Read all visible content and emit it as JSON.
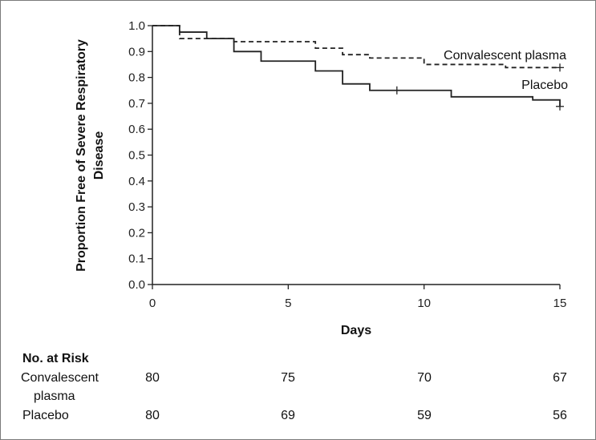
{
  "chart_data": {
    "type": "line",
    "subtype": "kaplan-meier",
    "title": "",
    "xlabel": "Days",
    "ylabel": [
      "Proportion Free of Severe Respiratory",
      "Disease"
    ],
    "xlim": [
      0,
      15
    ],
    "ylim": [
      0,
      1.0
    ],
    "xticks": [
      0,
      5,
      10,
      15
    ],
    "yticks": [
      0.0,
      0.1,
      0.2,
      0.3,
      0.4,
      0.5,
      0.6,
      0.7,
      0.8,
      0.9,
      1.0
    ],
    "ytick_labels": [
      "0.0",
      "0.1",
      "0.2",
      "0.3",
      "0.4",
      "0.5",
      "0.6",
      "0.7",
      "0.8",
      "0.9",
      "1.0"
    ],
    "grid": false,
    "series": [
      {
        "name": "Convalescent plasma",
        "line_style": "dashed",
        "color": "#222222",
        "steps": [
          [
            0,
            1.0
          ],
          [
            1,
            0.95
          ],
          [
            3,
            0.938
          ],
          [
            6,
            0.913
          ],
          [
            7,
            0.888
          ],
          [
            8,
            0.875
          ],
          [
            10,
            0.85
          ],
          [
            13,
            0.838
          ],
          [
            15,
            0.838
          ]
        ],
        "censored": [
          [
            15,
            0.838
          ]
        ]
      },
      {
        "name": "Placebo",
        "line_style": "solid",
        "color": "#222222",
        "steps": [
          [
            0,
            1.0
          ],
          [
            1,
            0.975
          ],
          [
            2,
            0.95
          ],
          [
            3,
            0.9
          ],
          [
            4,
            0.863
          ],
          [
            6,
            0.825
          ],
          [
            7,
            0.775
          ],
          [
            8,
            0.75
          ],
          [
            11,
            0.725
          ],
          [
            14,
            0.713
          ],
          [
            15,
            0.688
          ]
        ],
        "censored": [
          [
            9,
            0.75
          ],
          [
            15,
            0.688
          ]
        ]
      }
    ],
    "legend": [
      {
        "label": "Convalescent plasma",
        "placement": "near end of dashed curve"
      },
      {
        "label": "Placebo",
        "placement": "above end of solid curve"
      }
    ]
  },
  "risk_table": {
    "heading": "No. at Risk",
    "times": [
      0,
      5,
      10,
      15
    ],
    "rows": [
      {
        "label_lines": [
          "Convalescent",
          "plasma"
        ],
        "values": [
          "80",
          "75",
          "70",
          "67"
        ]
      },
      {
        "label_lines": [
          "Placebo"
        ],
        "values": [
          "80",
          "69",
          "59",
          "56"
        ]
      }
    ]
  }
}
